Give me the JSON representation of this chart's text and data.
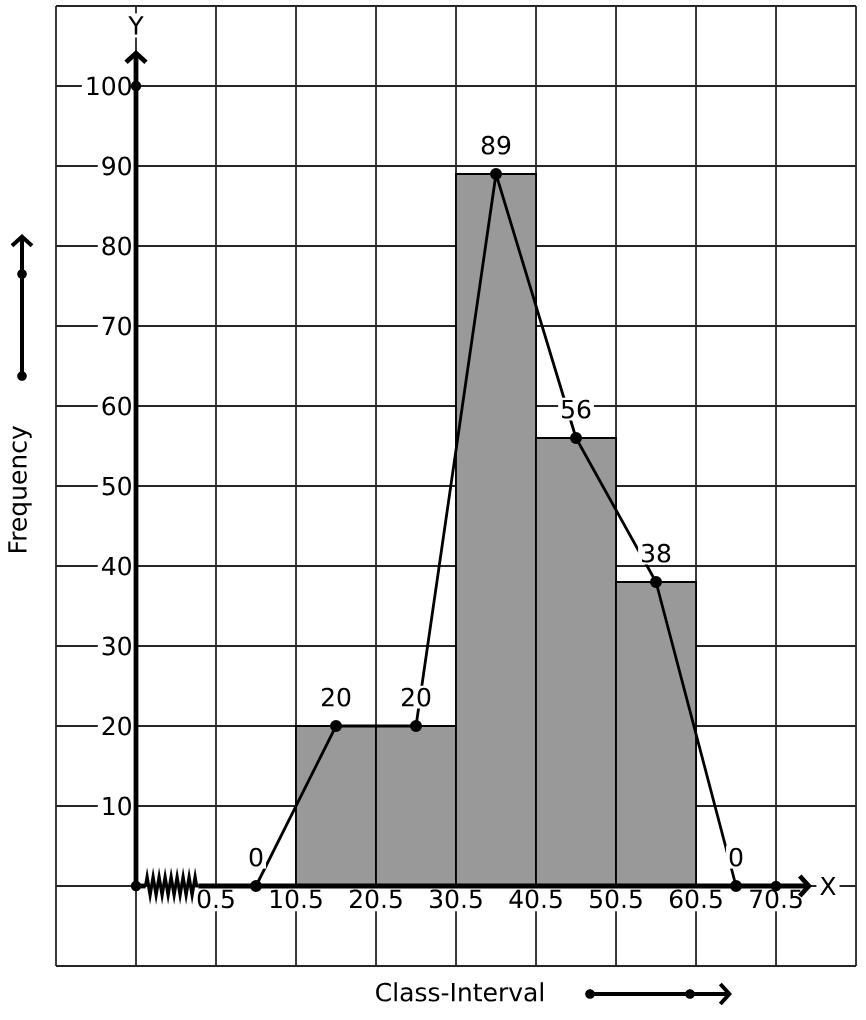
{
  "chart_data": {
    "type": "histogram",
    "xlabel": "Class-Interval",
    "ylabel": "Frequency",
    "annotations": [
      "X",
      "Y"
    ],
    "bins": [
      10.5,
      20.5,
      30.5,
      40.5,
      50.5,
      60.5
    ],
    "values": [
      20,
      20,
      89,
      56,
      38
    ],
    "color": "#999999",
    "series": [
      {
        "type": "line",
        "x": [
          5.5,
          15.5,
          25.5,
          35.5,
          45.5,
          55.5,
          65.5
        ],
        "values": [
          0,
          20,
          20,
          89,
          56,
          38,
          0
        ],
        "color": "#000000",
        "marker": "circle",
        "line_style": "solid",
        "value_labels": [
          "0",
          "20",
          "20",
          "89",
          "56",
          "38",
          "0"
        ]
      }
    ],
    "xlim": [
      -19.5,
      80.5
    ],
    "ylim": [
      -10,
      110
    ],
    "xticks": [
      0.5,
      10.5,
      20.5,
      30.5,
      40.5,
      50.5,
      60.5,
      70.5
    ],
    "yticks": [
      10,
      20,
      30,
      40,
      50,
      60,
      70,
      80,
      90,
      100
    ],
    "grid": true
  }
}
